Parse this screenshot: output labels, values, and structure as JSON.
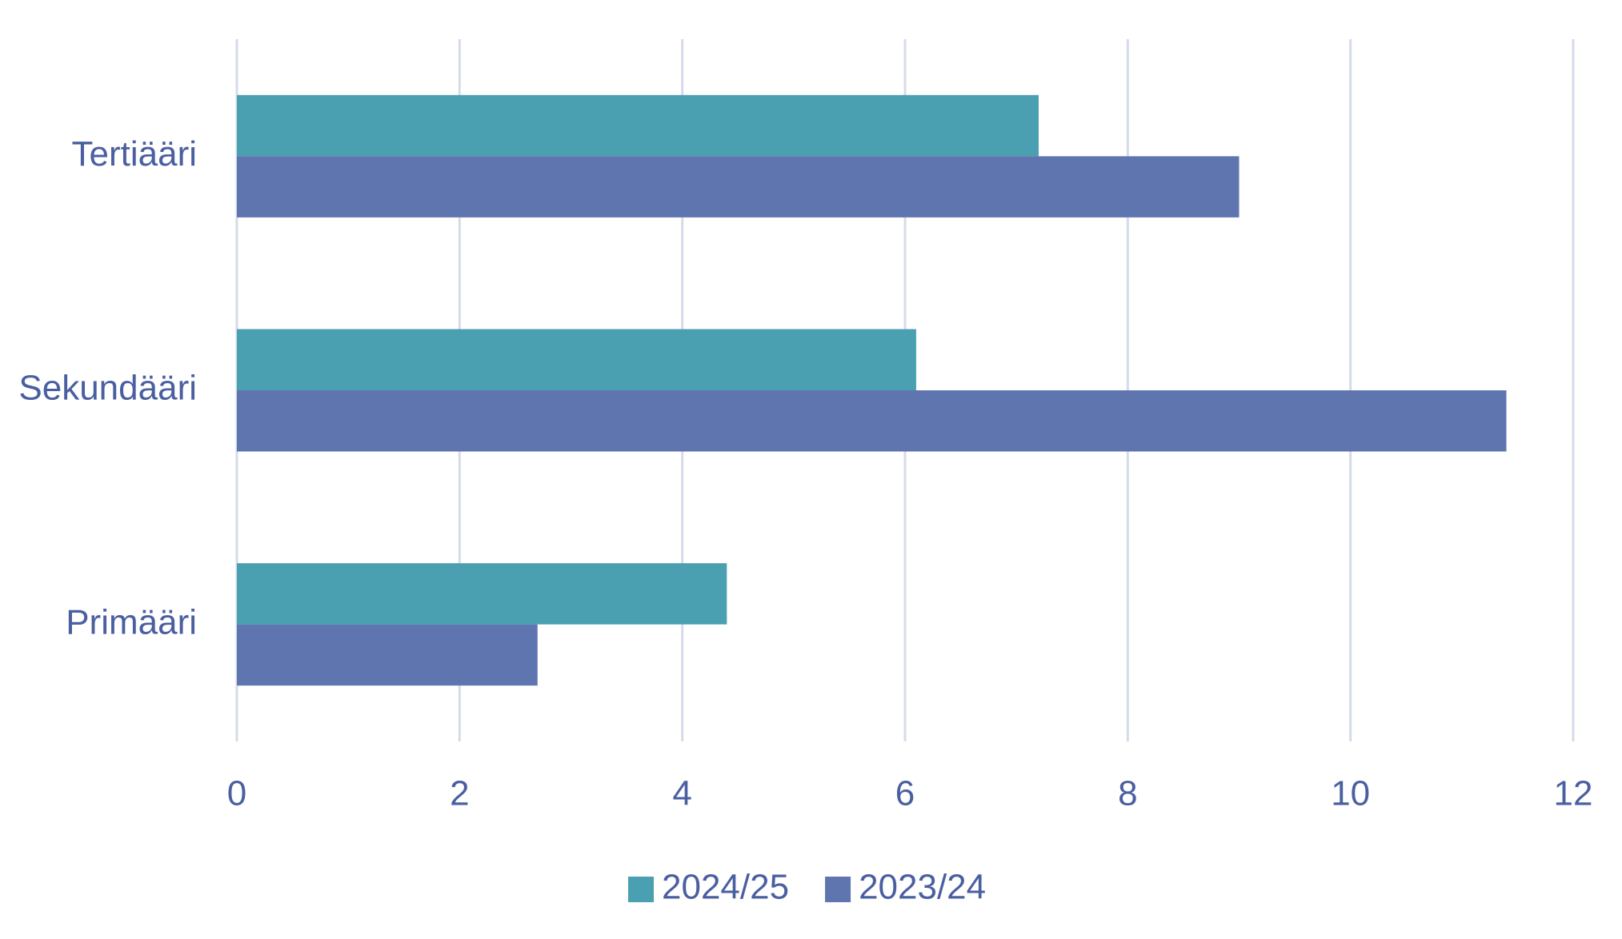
{
  "chart_data": {
    "type": "hbar",
    "categories": [
      "Tertiääri",
      "Sekundääri",
      "Primääri"
    ],
    "series": [
      {
        "name": "2024/25",
        "color": "#4aa0b0",
        "values": [
          7.2,
          6.1,
          4.4
        ]
      },
      {
        "name": "2023/24",
        "color": "#5f75b0",
        "values": [
          9.0,
          11.4,
          2.7
        ]
      }
    ],
    "xlim": [
      0,
      12
    ],
    "xticks": [
      0,
      2,
      4,
      6,
      8,
      10,
      12
    ],
    "grid": true,
    "legend": "bottom"
  }
}
